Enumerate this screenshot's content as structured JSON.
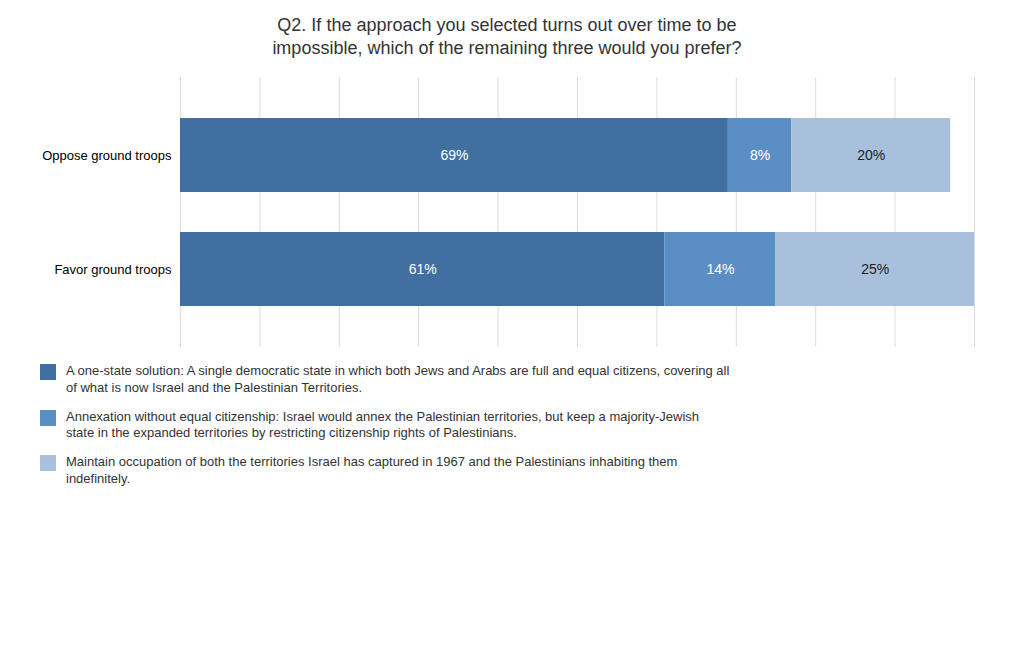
{
  "chart_data": {
    "type": "bar",
    "orientation": "horizontal",
    "stacked": true,
    "title": "Q2. If the approach you selected turns out over time to be\nimpossible, which of the remaining three would you prefer?",
    "categories": [
      "Oppose ground troops",
      "Favor ground troops"
    ],
    "series": [
      {
        "name": "A one-state solution: A single democratic state in which both Jews and Arabs are full and equal citizens, covering all\nof what is now Israel and the Palestinian Territories.",
        "color": "#4070a0",
        "values": [
          69,
          61
        ],
        "value_labels": [
          "69%",
          "61%"
        ]
      },
      {
        "name": "Annexation without equal citizenship: Israel would annex the Palestinian territories, but keep a majority-Jewish\nstate in the expanded territories by restricting citizenship rights of Palestinians.",
        "color": "#5b8ec4",
        "values": [
          8,
          14
        ],
        "value_labels": [
          "8%",
          "14%"
        ]
      },
      {
        "name": "Maintain occupation of both the territories Israel has captured in 1967 and the Palestinians inhabiting them\nindefinitely.",
        "color": "#a8c0dc",
        "values": [
          20,
          25
        ],
        "value_labels": [
          "20%",
          "25%"
        ]
      }
    ],
    "xlim": [
      0,
      100
    ],
    "xticks": [
      0,
      10,
      20,
      30,
      40,
      50,
      60,
      70,
      80,
      90,
      100
    ],
    "grid": true,
    "data_labels": true,
    "tick_labels": "y",
    "legend": "bottom"
  }
}
